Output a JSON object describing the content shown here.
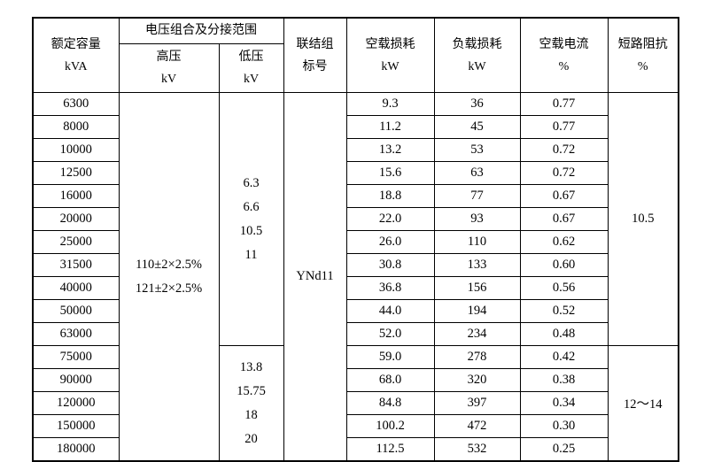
{
  "table": {
    "headers": {
      "capacity": [
        "额定容量",
        "kVA"
      ],
      "voltage_group": "电压组合及分接范围",
      "hv": [
        "高压",
        "kV"
      ],
      "lv": [
        "低压",
        "kV"
      ],
      "connection": [
        "联结组",
        "标号"
      ],
      "no_load_loss": [
        "空载损耗",
        "kW"
      ],
      "load_loss": [
        "负载损耗",
        "kW"
      ],
      "no_load_current": [
        "空载电流",
        "%"
      ],
      "impedance": [
        "短路阻抗",
        "%"
      ]
    },
    "hv_tapping": [
      "110±2×2.5%",
      "121±2×2.5%"
    ],
    "connection_symbol": "YNd11",
    "groups": [
      {
        "lv_values": [
          "6.3",
          "6.6",
          "10.5",
          "11"
        ],
        "impedance": "10.5",
        "rows": [
          {
            "capacity": "6300",
            "no_load_loss": "9.3",
            "load_loss": "36",
            "no_load_current": "0.77"
          },
          {
            "capacity": "8000",
            "no_load_loss": "11.2",
            "load_loss": "45",
            "no_load_current": "0.77"
          },
          {
            "capacity": "10000",
            "no_load_loss": "13.2",
            "load_loss": "53",
            "no_load_current": "0.72"
          },
          {
            "capacity": "12500",
            "no_load_loss": "15.6",
            "load_loss": "63",
            "no_load_current": "0.72"
          },
          {
            "capacity": "16000",
            "no_load_loss": "18.8",
            "load_loss": "77",
            "no_load_current": "0.67"
          },
          {
            "capacity": "20000",
            "no_load_loss": "22.0",
            "load_loss": "93",
            "no_load_current": "0.67"
          },
          {
            "capacity": "25000",
            "no_load_loss": "26.0",
            "load_loss": "110",
            "no_load_current": "0.62"
          },
          {
            "capacity": "31500",
            "no_load_loss": "30.8",
            "load_loss": "133",
            "no_load_current": "0.60"
          },
          {
            "capacity": "40000",
            "no_load_loss": "36.8",
            "load_loss": "156",
            "no_load_current": "0.56"
          },
          {
            "capacity": "50000",
            "no_load_loss": "44.0",
            "load_loss": "194",
            "no_load_current": "0.52"
          },
          {
            "capacity": "63000",
            "no_load_loss": "52.0",
            "load_loss": "234",
            "no_load_current": "0.48"
          }
        ]
      },
      {
        "lv_values": [
          "13.8",
          "15.75",
          "18",
          "20"
        ],
        "impedance": "12～14",
        "rows": [
          {
            "capacity": "75000",
            "no_load_loss": "59.0",
            "load_loss": "278",
            "no_load_current": "0.42"
          },
          {
            "capacity": "90000",
            "no_load_loss": "68.0",
            "load_loss": "320",
            "no_load_current": "0.38"
          },
          {
            "capacity": "120000",
            "no_load_loss": "84.8",
            "load_loss": "397",
            "no_load_current": "0.34"
          },
          {
            "capacity": "150000",
            "no_load_loss": "100.2",
            "load_loss": "472",
            "no_load_current": "0.30"
          },
          {
            "capacity": "180000",
            "no_load_loss": "112.5",
            "load_loss": "532",
            "no_load_current": "0.25"
          }
        ]
      }
    ]
  }
}
